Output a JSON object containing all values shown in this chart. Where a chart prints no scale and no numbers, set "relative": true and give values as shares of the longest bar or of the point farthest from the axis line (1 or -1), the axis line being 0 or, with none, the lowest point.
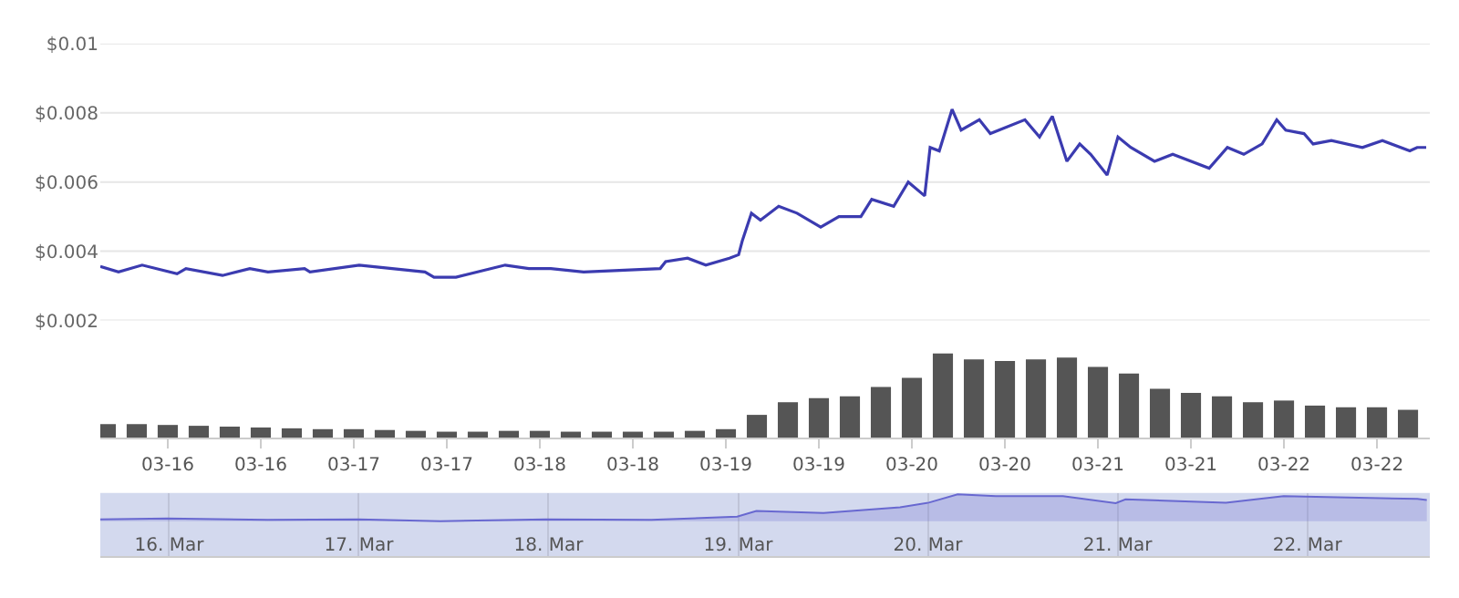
{
  "chart_data": [
    {
      "type": "line",
      "x": [
        "--03-15T15:18",
        "--03-15T17:39",
        "--03-15T20:42",
        "--03-16T01:12",
        "--03-16T02:21",
        "--03-16T07:04",
        "--03-16T10:35",
        "--03-16T12:56",
        "--03-16T17:39",
        "--03-16T18:21",
        "--03-17T00:42",
        "--03-17T09:11",
        "--03-17T10:21",
        "--03-17T13:11",
        "--03-17T19:32",
        "--03-17T22:35",
        "--03-18T01:25",
        "--03-18T05:39",
        "--03-18T15:32",
        "--03-18T16:14",
        "--03-18T19:04",
        "--03-18T21:25",
        "--03-19T00:28",
        "--03-19T01:39",
        "--03-19T02:07",
        "--03-19T03:18",
        "--03-19T04:28",
        "--03-19T06:49",
        "--03-19T09:11",
        "--03-19T12:14",
        "--03-19T14:35",
        "--03-19T17:25",
        "--03-19T18:49",
        "--03-19T21:39",
        "--03-19T23:32",
        "--03-20T01:39",
        "--03-20T02:21",
        "--03-20T03:32",
        "--03-20T05:11",
        "--03-20T06:21",
        "--03-20T08:42",
        "--03-20T10:07",
        "--03-20T14:35",
        "--03-20T16:28",
        "--03-20T18:07",
        "--03-20T20:00",
        "--03-20T21:39",
        "--03-20T23:04",
        "--03-21T01:11",
        "--03-21T02:35",
        "--03-21T04:14",
        "--03-21T07:18",
        "--03-21T09:39",
        "--03-21T14:21",
        "--03-21T16:42",
        "--03-21T18:49",
        "--03-21T21:11",
        "--03-21T23:04",
        "--03-22T00:14",
        "--03-22T02:35",
        "--03-22T03:46",
        "--03-22T06:07",
        "--03-22T10:07",
        "--03-22T12:42",
        "--03-22T16:14",
        "--03-22T17:11",
        "--03-22T18:21"
      ],
      "series": [
        {
          "color": "#3b3bb0",
          "values": [
            0.00356,
            0.0034,
            0.0036,
            0.00335,
            0.0035,
            0.0033,
            0.0035,
            0.0034,
            0.0035,
            0.0034,
            0.0036,
            0.0034,
            0.00325,
            0.00325,
            0.0036,
            0.0035,
            0.0035,
            0.0034,
            0.0035,
            0.0037,
            0.0038,
            0.0036,
            0.0038,
            0.0039,
            0.0043,
            0.0051,
            0.0049,
            0.0053,
            0.0051,
            0.0047,
            0.005,
            0.005,
            0.0055,
            0.0053,
            0.006,
            0.0056,
            0.007,
            0.0069,
            0.0081,
            0.0075,
            0.0078,
            0.0074,
            0.0078,
            0.0073,
            0.0079,
            0.0066,
            0.0071,
            0.0068,
            0.0062,
            0.0073,
            0.007,
            0.0066,
            0.0068,
            0.0064,
            0.007,
            0.0068,
            0.0071,
            0.0078,
            0.0075,
            0.0074,
            0.0071,
            0.0072,
            0.007,
            0.0072,
            0.0069,
            0.007,
            0.007
          ]
        }
      ],
      "xlim": [
        "--03-15T15:18",
        "--03-22T18:49"
      ],
      "ylim": [
        0.002,
        0.01
      ],
      "yticks": [
        {
          "value": 0.002,
          "label": "$0.002"
        },
        {
          "value": 0.004,
          "label": "$0.004"
        },
        {
          "value": 0.006,
          "label": "$0.006"
        },
        {
          "value": 0.008,
          "label": "$0.008"
        },
        {
          "value": 0.01,
          "label": "$0.01"
        }
      ],
      "grid": "y",
      "tick_labels": "y"
    },
    {
      "type": "bar",
      "relative": true,
      "x": [
        "--03-15T16:00",
        "--03-15T20:00",
        "--03-16T00:00",
        "--03-16T04:00",
        "--03-16T08:00",
        "--03-16T12:00",
        "--03-16T16:00",
        "--03-16T20:00",
        "--03-17T00:00",
        "--03-17T04:00",
        "--03-17T08:00",
        "--03-17T12:00",
        "--03-17T16:00",
        "--03-17T20:00",
        "--03-18T00:00",
        "--03-18T04:00",
        "--03-18T08:00",
        "--03-18T12:00",
        "--03-18T16:00",
        "--03-18T20:00",
        "--03-19T00:00",
        "--03-19T04:00",
        "--03-19T08:00",
        "--03-19T12:00",
        "--03-19T16:00",
        "--03-19T20:00",
        "--03-20T00:00",
        "--03-20T04:00",
        "--03-20T08:00",
        "--03-20T12:00",
        "--03-20T16:00",
        "--03-20T20:00",
        "--03-21T00:00",
        "--03-21T04:00",
        "--03-21T08:00",
        "--03-21T12:00",
        "--03-21T16:00",
        "--03-21T20:00",
        "--03-22T00:00",
        "--03-22T04:00",
        "--03-22T08:00",
        "--03-22T12:00",
        "--03-22T16:00"
      ],
      "series": [
        {
          "color": "#555555",
          "values": [
            0.16,
            0.16,
            0.15,
            0.14,
            0.13,
            0.12,
            0.11,
            0.1,
            0.1,
            0.09,
            0.08,
            0.07,
            0.07,
            0.08,
            0.08,
            0.07,
            0.07,
            0.07,
            0.07,
            0.08,
            0.1,
            0.27,
            0.42,
            0.47,
            0.49,
            0.6,
            0.71,
            1.0,
            0.93,
            0.91,
            0.93,
            0.95,
            0.84,
            0.76,
            0.58,
            0.53,
            0.49,
            0.42,
            0.44,
            0.38,
            0.36,
            0.36,
            0.33
          ]
        }
      ],
      "xlim": [
        "--03-15T15:18",
        "--03-22T18:49"
      ],
      "xticks": [
        {
          "value": "--03-16T00:00",
          "label": "03-16"
        },
        {
          "value": "--03-16T12:00",
          "label": "03-16"
        },
        {
          "value": "--03-17T00:00",
          "label": "03-17"
        },
        {
          "value": "--03-17T12:00",
          "label": "03-17"
        },
        {
          "value": "--03-18T00:00",
          "label": "03-18"
        },
        {
          "value": "--03-18T12:00",
          "label": "03-18"
        },
        {
          "value": "--03-19T00:00",
          "label": "03-19"
        },
        {
          "value": "--03-19T12:00",
          "label": "03-19"
        },
        {
          "value": "--03-20T00:00",
          "label": "03-20"
        },
        {
          "value": "--03-20T12:00",
          "label": "03-20"
        },
        {
          "value": "--03-21T00:00",
          "label": "03-21"
        },
        {
          "value": "--03-21T12:00",
          "label": "03-21"
        },
        {
          "value": "--03-22T00:00",
          "label": "03-22"
        },
        {
          "value": "--03-22T12:00",
          "label": "03-22"
        }
      ],
      "tick_labels": "x"
    },
    {
      "type": "area",
      "relative": true,
      "x": [
        "--03-15T15:18",
        "--03-15T23:46",
        "--03-16T12:29",
        "--03-17T00:00",
        "--03-17T10:18",
        "--03-17T23:38",
        "--03-18T13:00",
        "--03-18T23:52",
        "--03-19T02:18",
        "--03-19T10:47",
        "--03-19T20:29",
        "--03-20T00:07",
        "--03-20T03:46",
        "--03-20T08:36",
        "--03-20T17:05",
        "--03-20T23:46",
        "--03-21T01:00",
        "--03-21T13:42",
        "--03-21T21:00",
        "--03-22T13:55",
        "--03-22T15:07"
      ],
      "series": [
        {
          "color": "#6868d0",
          "values": [
            0.07,
            0.1,
            0.05,
            0.07,
            0,
            0.07,
            0.05,
            0.17,
            0.38,
            0.31,
            0.52,
            0.69,
            1,
            0.93,
            0.93,
            0.67,
            0.81,
            0.69,
            0.93,
            0.83,
            0.79
          ]
        }
      ],
      "xlim": [
        "--03-15T15:18",
        "--03-22T15:30"
      ],
      "xticks": [
        {
          "value": "--03-16T00:00",
          "label": "16. Mar"
        },
        {
          "value": "--03-17T00:00",
          "label": "17. Mar"
        },
        {
          "value": "--03-18T00:00",
          "label": "18. Mar"
        },
        {
          "value": "--03-19T00:00",
          "label": "19. Mar"
        },
        {
          "value": "--03-20T00:00",
          "label": "20. Mar"
        },
        {
          "value": "--03-21T00:00",
          "label": "21. Mar"
        },
        {
          "value": "--03-22T00:00",
          "label": "22. Mar"
        }
      ],
      "grid": "x",
      "tick_labels": "x"
    }
  ]
}
